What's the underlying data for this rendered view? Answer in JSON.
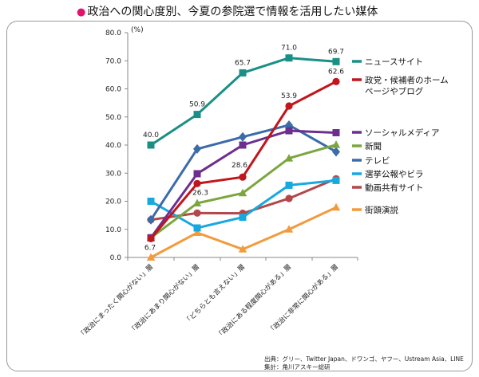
{
  "header": {
    "bullet": "●",
    "title": "政治への関心度別、今夏の参院選で情報を活用したい媒体"
  },
  "footer": {
    "source_line": "出典：グリー、Twitter Japan、ドワンゴ、ヤフー、Ustream Asia、LINE",
    "compile_line": "集計：角川アスキー総研"
  },
  "chart_data": {
    "type": "line",
    "title": "政治への関心度別、今夏の参院選で情報を活用したい媒体",
    "ylabel": "(%)",
    "xlabel": "",
    "ylim": [
      0,
      80
    ],
    "yticks": [
      "0.0",
      "10.0",
      "20.0",
      "30.0",
      "40.0",
      "50.0",
      "60.0",
      "70.0",
      "80.0"
    ],
    "grid": false,
    "legend_position": "right",
    "categories": [
      "「政治にまったく関心がない」層",
      "「政治にあまり関心がない」層",
      "「どちらとも言えない」層",
      "「政治にある程度関心がある」層",
      "「政治に非常に関心がある」層"
    ],
    "series": [
      {
        "name": "ニュースサイト",
        "color": "#1a8f86",
        "marker": "square",
        "values": [
          40.0,
          50.9,
          65.7,
          71.0,
          69.7
        ]
      },
      {
        "name": "政党・候補者のホームページやブログ",
        "color": "#c0161c",
        "marker": "circle",
        "values": [
          6.7,
          26.3,
          28.6,
          53.9,
          62.6
        ]
      },
      {
        "name": "ソーシャルメディア",
        "color": "#6d2f8f",
        "marker": "square",
        "values": [
          7.0,
          29.8,
          40.0,
          45.1,
          44.4
        ]
      },
      {
        "name": "新聞",
        "color": "#7ba63d",
        "marker": "triangle",
        "values": [
          7.0,
          19.3,
          22.9,
          35.3,
          40.1
        ]
      },
      {
        "name": "テレビ",
        "color": "#3b6ba8",
        "marker": "diamond",
        "values": [
          13.4,
          38.6,
          42.9,
          47.1,
          37.6
        ]
      },
      {
        "name": "選挙公報やビラ",
        "color": "#18a8e0",
        "marker": "square",
        "values": [
          20.0,
          10.5,
          14.3,
          25.7,
          27.4
        ]
      },
      {
        "name": "動画共有サイト",
        "color": "#b3474a",
        "marker": "circle",
        "values": [
          13.4,
          15.8,
          15.7,
          21.0,
          28.0
        ]
      },
      {
        "name": "街頭演説",
        "color": "#f39b3c",
        "marker": "triangle",
        "values": [
          0.0,
          8.8,
          2.9,
          10.0,
          17.8
        ]
      }
    ],
    "data_labels": [
      {
        "series": "ニュースサイト",
        "values": [
          "40.0",
          "50.9",
          "65.7",
          "71.0",
          "69.7"
        ]
      },
      {
        "series": "政党・候補者のホームページやブログ",
        "values": [
          "6.7",
          "26.3",
          "28.6",
          "53.9",
          "62.6"
        ]
      }
    ],
    "legend": [
      {
        "label": "ニュースサイト",
        "color": "#1a8f86"
      },
      {
        "label": "政党・候補者のホーム",
        "label2": "ページやブログ",
        "color": "#c0161c"
      },
      {
        "label": "ソーシャルメディア",
        "color": "#6d2f8f"
      },
      {
        "label": "新聞",
        "color": "#7ba63d"
      },
      {
        "label": "テレビ",
        "color": "#3b6ba8"
      },
      {
        "label": "選挙公報やビラ",
        "color": "#18a8e0"
      },
      {
        "label": "動画共有サイト",
        "color": "#b3474a"
      },
      {
        "label": "街頭演説",
        "color": "#f39b3c"
      }
    ]
  }
}
